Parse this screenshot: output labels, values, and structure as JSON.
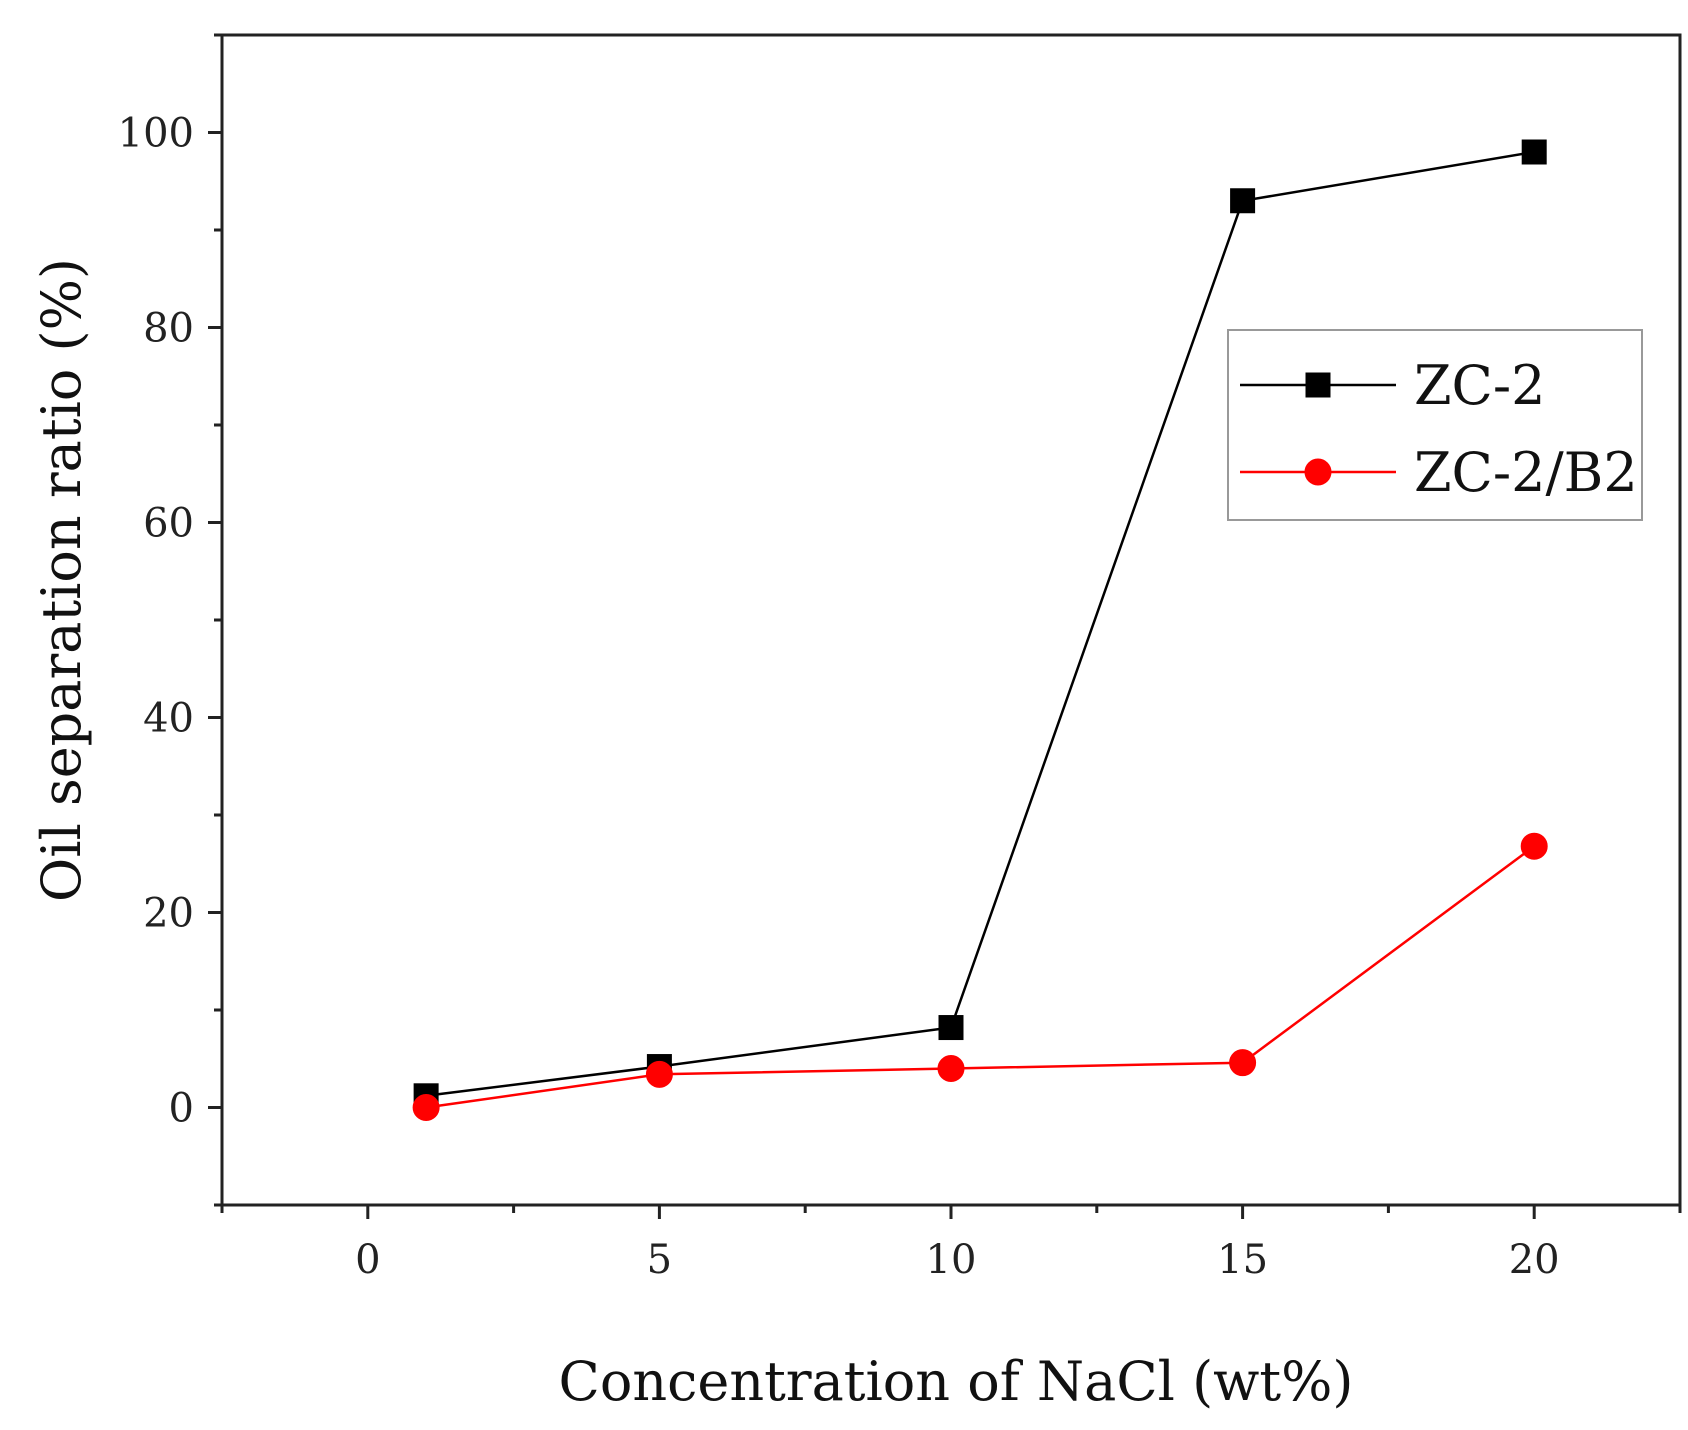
{
  "chart_data": {
    "type": "line",
    "title": "",
    "xlabel": "Concentration of NaCl (wt%)",
    "ylabel": "Oil separation ratio (%)",
    "xlim": [
      -2.5,
      22.5
    ],
    "ylim": [
      -10,
      110
    ],
    "xticks": [
      0,
      5,
      10,
      15,
      20
    ],
    "yticks": [
      0,
      20,
      40,
      60,
      80,
      100
    ],
    "x_minor_step": 2.5,
    "y_minor_step": 10,
    "legend_position": "upper-right",
    "series": [
      {
        "name": "ZC-2",
        "color": "#000000",
        "marker": "square",
        "x": [
          1,
          5,
          10,
          15,
          20
        ],
        "y": [
          1.2,
          4.2,
          8.2,
          93,
          98
        ]
      },
      {
        "name": "ZC-2/B2",
        "color": "#ff0000",
        "marker": "circle",
        "x": [
          1,
          5,
          10,
          15,
          20
        ],
        "y": [
          0,
          3.4,
          4,
          4.6,
          26.8
        ]
      }
    ]
  }
}
